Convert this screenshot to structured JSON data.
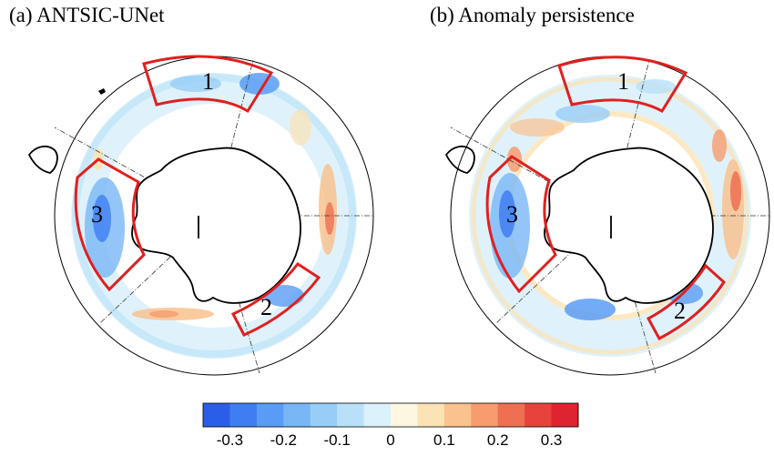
{
  "panels": [
    {
      "id": "a",
      "title": "(a) ANTSIC-UNet",
      "regions": [
        {
          "label": "1"
        },
        {
          "label": "2"
        },
        {
          "label": "3"
        }
      ]
    },
    {
      "id": "b",
      "title": "(b) Anomaly persistence",
      "regions": [
        {
          "label": "1"
        },
        {
          "label": "2"
        },
        {
          "label": "3"
        }
      ]
    }
  ],
  "colorbar": {
    "min": -0.35,
    "max": 0.35,
    "colors": [
      "#2b5ee8",
      "#3f7ef2",
      "#5a9cf5",
      "#78b6f6",
      "#97cdf7",
      "#b8e1f9",
      "#dbf1fb",
      "#fdf7e2",
      "#fbe3b5",
      "#f9c28e",
      "#f69c6e",
      "#ef6f52",
      "#e8423d",
      "#dd2430"
    ],
    "tick_labels": [
      "-0.3",
      "-0.2",
      "-0.1",
      "0",
      "0.1",
      "0.2",
      "0.3"
    ],
    "tick_values": [
      -0.3,
      -0.2,
      -0.1,
      0,
      0.1,
      0.2,
      0.3
    ]
  },
  "colors": {
    "region_outline": "#e02020",
    "coastline": "#000000",
    "grid": "#333333"
  }
}
